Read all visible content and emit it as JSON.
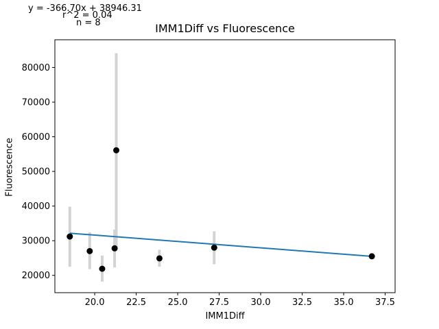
{
  "annotations": {
    "equation": "y = -366.70x + 38946.31",
    "r2": "r^2 = 0.04",
    "n": "n = 8"
  },
  "colors": {
    "points": "#000000",
    "error_bars": "#d3d3d3",
    "fit_line": "#1f77b4",
    "axes": "#000000"
  },
  "chart_data": {
    "type": "scatter",
    "title": "IMM1Diff vs Fluorescence",
    "xlabel": "IMM1Diff",
    "ylabel": "Fluorescence",
    "xlim": [
      17.6,
      38.1
    ],
    "ylim": [
      15000,
      88000
    ],
    "x_ticks": [
      20.0,
      22.5,
      25.0,
      27.5,
      30.0,
      32.5,
      35.0,
      37.5
    ],
    "x_tick_labels": [
      "20.0",
      "22.5",
      "25.0",
      "27.5",
      "30.0",
      "32.5",
      "35.0",
      "37.5"
    ],
    "y_ticks": [
      20000,
      30000,
      40000,
      50000,
      60000,
      70000,
      80000
    ],
    "y_tick_labels": [
      "20000",
      "30000",
      "40000",
      "50000",
      "60000",
      "70000",
      "80000"
    ],
    "grid": false,
    "legend": "none",
    "points": [
      {
        "x": 18.5,
        "y": 31200,
        "err_low": 22500,
        "err_high": 39800
      },
      {
        "x": 19.7,
        "y": 27000,
        "err_low": 21800,
        "err_high": 32400
      },
      {
        "x": 20.45,
        "y": 21900,
        "err_low": 18200,
        "err_high": 25700
      },
      {
        "x": 21.2,
        "y": 27800,
        "err_low": 22300,
        "err_high": 33200
      },
      {
        "x": 21.3,
        "y": 56100,
        "err_low": 28000,
        "err_high": 84100
      },
      {
        "x": 23.9,
        "y": 24900,
        "err_low": 22500,
        "err_high": 27400
      },
      {
        "x": 27.2,
        "y": 28000,
        "err_low": 23200,
        "err_high": 32700
      },
      {
        "x": 36.7,
        "y": 25500,
        "err_low": 25500,
        "err_high": 25500
      }
    ],
    "fit": {
      "slope": -366.7,
      "intercept": 38946.31,
      "x_range": [
        18.5,
        36.7
      ]
    }
  }
}
